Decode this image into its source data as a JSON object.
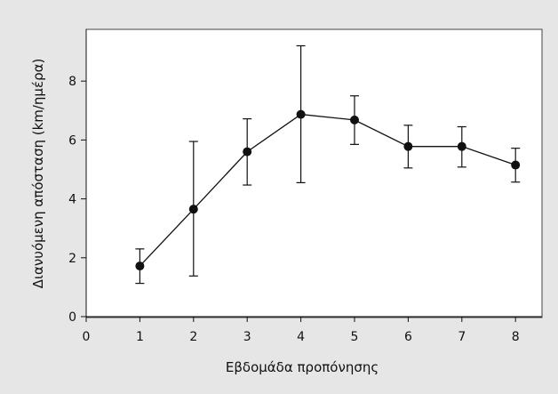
{
  "chart_data": {
    "type": "line",
    "title": "",
    "xlabel": "Εβδομάδα προπόνησης",
    "ylabel": "Διανυόμενη απόσταση (km/ημέρα)",
    "xlim": [
      0,
      8
    ],
    "ylim": [
      0,
      9.8
    ],
    "xticks": [
      0,
      1,
      2,
      3,
      4,
      5,
      6,
      7,
      8
    ],
    "yticks": [
      0,
      2,
      4,
      6,
      8
    ],
    "grid": false,
    "legend": "none",
    "series": [
      {
        "x": [
          1,
          2,
          3,
          4,
          5,
          6,
          7,
          8
        ],
        "y": [
          1.72,
          3.65,
          5.6,
          6.87,
          6.68,
          5.78,
          5.78,
          5.15
        ],
        "y_upper": [
          2.3,
          5.95,
          6.72,
          9.2,
          7.5,
          6.5,
          6.45,
          5.72
        ],
        "y_lower": [
          1.13,
          1.38,
          4.47,
          4.55,
          5.85,
          5.05,
          5.08,
          4.57
        ]
      }
    ]
  }
}
